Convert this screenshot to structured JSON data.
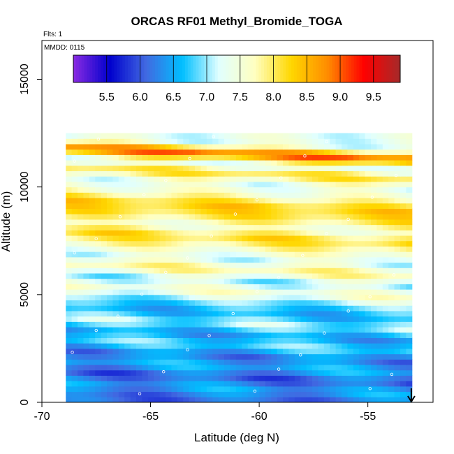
{
  "chart_data": {
    "type": "heatmap",
    "title": "ORCAS RF01 Methyl_Bromide_TOGA",
    "xlabel": "Latitude (deg N)",
    "ylabel": "Altitude (m)",
    "flights_label": "Flts: 1",
    "date_label": "MMDD: 0115",
    "xlim": [
      -70,
      -52
    ],
    "ylim": [
      0,
      16800
    ],
    "x_ticks": [
      -70,
      -65,
      -60,
      -55
    ],
    "x_tick_labels": [
      "-70",
      "-65",
      "-60",
      "-55"
    ],
    "y_ticks": [
      0,
      5000,
      10000,
      15000
    ],
    "y_tick_labels": [
      "0",
      "5000",
      "10000",
      "15000"
    ],
    "colorbar": {
      "range": [
        5.0,
        9.9
      ],
      "ticks": [
        5.5,
        6.0,
        6.5,
        7.0,
        7.5,
        8.0,
        8.5,
        9.0,
        9.5
      ],
      "tick_labels": [
        "5.5",
        "6.0",
        "6.5",
        "7.0",
        "7.5",
        "8.0",
        "8.5",
        "9.0",
        "9.5"
      ],
      "colors": [
        "#8a2be2",
        "#0000cd",
        "#4169e1",
        "#00bfff",
        "#e0ffff",
        "#ffffc0",
        "#ffd700",
        "#ff8c00",
        "#ff0000",
        "#a52a2a"
      ]
    },
    "data_extent": {
      "lat_min": -68.9,
      "lat_max": -53.1,
      "alt_min": 0,
      "alt_max": 12400
    },
    "layers": [
      {
        "alt": 12150,
        "value": 7.3
      },
      {
        "alt": 11700,
        "value": 9.1
      },
      {
        "alt": 11200,
        "value": 7.2
      },
      {
        "alt": 10800,
        "value": 8.2
      },
      {
        "alt": 10300,
        "value": 7.3
      },
      {
        "alt": 9800,
        "value": 7.6
      },
      {
        "alt": 9300,
        "value": 8.3
      },
      {
        "alt": 8800,
        "value": 8.1
      },
      {
        "alt": 8300,
        "value": 7.5
      },
      {
        "alt": 7800,
        "value": 8.2
      },
      {
        "alt": 7300,
        "value": 7.7
      },
      {
        "alt": 6800,
        "value": 7.2
      },
      {
        "alt": 6300,
        "value": 7.9
      },
      {
        "alt": 5800,
        "value": 7.0
      },
      {
        "alt": 5300,
        "value": 7.6
      },
      {
        "alt": 4800,
        "value": 6.9
      },
      {
        "alt": 4300,
        "value": 6.5
      },
      {
        "alt": 3800,
        "value": 7.1
      },
      {
        "alt": 3300,
        "value": 6.4
      },
      {
        "alt": 2800,
        "value": 6.9
      },
      {
        "alt": 2300,
        "value": 6.2
      },
      {
        "alt": 1800,
        "value": 6.6
      },
      {
        "alt": 1300,
        "value": 6.0
      },
      {
        "alt": 800,
        "value": 6.5
      },
      {
        "alt": 300,
        "value": 6.1
      }
    ],
    "marker_latitude": -53.0
  }
}
